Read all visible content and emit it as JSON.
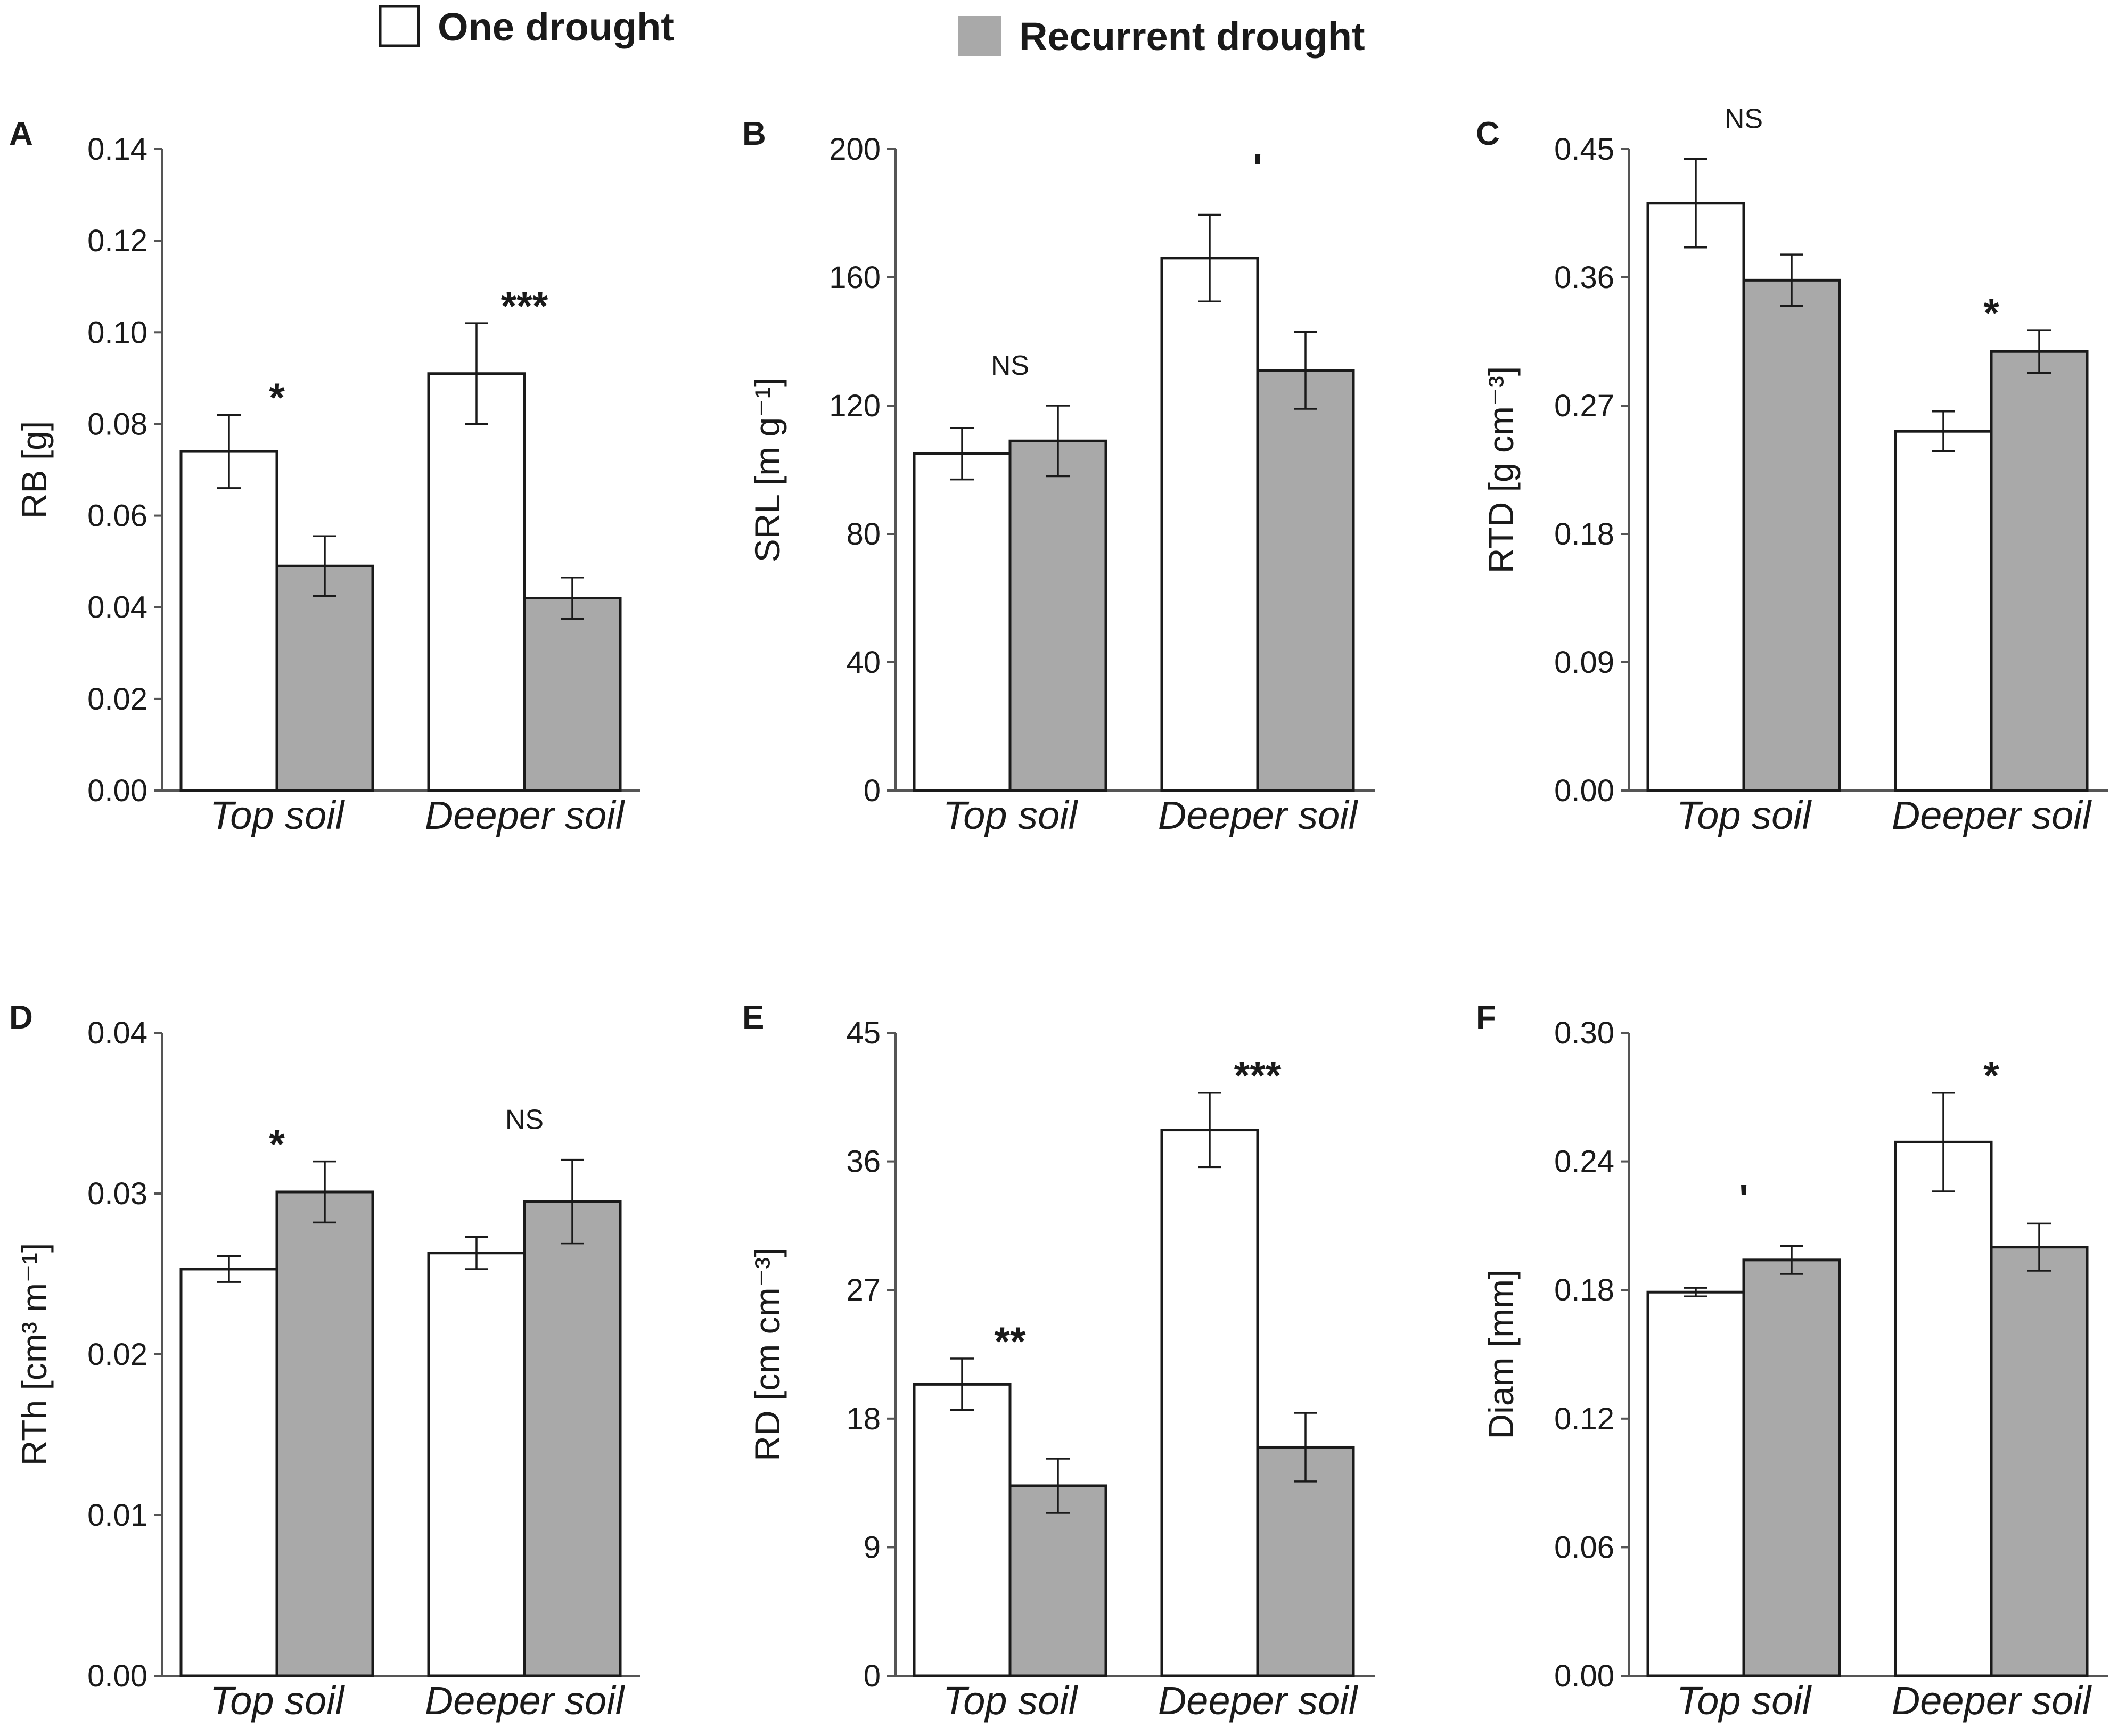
{
  "legend": {
    "one_label": "One drought",
    "recurrent_label": "Recurrent drought"
  },
  "colors": {
    "one": "#ffffff",
    "recurrent": "#a9a9a9",
    "stroke": "#1a1a1a"
  },
  "chart_data": [
    {
      "panel": "A",
      "type": "bar",
      "ylabel": "RB [g]",
      "categories": [
        "Top soil",
        "Deeper soil"
      ],
      "ylim": [
        0,
        0.14
      ],
      "ticks": [
        "0.00",
        "0.02",
        "0.04",
        "0.06",
        "0.08",
        "0.10",
        "0.12",
        "0.14"
      ],
      "series": [
        {
          "name": "One drought",
          "values": [
            0.074,
            0.091
          ],
          "errors": [
            0.008,
            0.011
          ]
        },
        {
          "name": "Recurrent drought",
          "values": [
            0.049,
            0.042
          ],
          "errors": [
            0.0065,
            0.0045
          ]
        }
      ],
      "significance": [
        "*",
        "***"
      ]
    },
    {
      "panel": "B",
      "type": "bar",
      "ylabel": "SRL [m g⁻¹]",
      "categories": [
        "Top soil",
        "Deeper soil"
      ],
      "ylim": [
        0,
        200
      ],
      "ticks": [
        "0",
        "40",
        "80",
        "120",
        "160",
        "200"
      ],
      "series": [
        {
          "name": "One drought",
          "values": [
            105,
            166
          ],
          "errors": [
            8,
            13.5
          ]
        },
        {
          "name": "Recurrent drought",
          "values": [
            109,
            131
          ],
          "errors": [
            11,
            12
          ]
        }
      ],
      "significance": [
        "NS",
        "'"
      ]
    },
    {
      "panel": "C",
      "type": "bar",
      "ylabel": "RTD [g cm⁻³]",
      "categories": [
        "Top soil",
        "Deeper soil"
      ],
      "ylim": [
        0,
        0.45
      ],
      "ticks": [
        "0.00",
        "0.09",
        "0.18",
        "0.27",
        "0.36",
        "0.45"
      ],
      "series": [
        {
          "name": "One drought",
          "values": [
            0.412,
            0.252
          ],
          "errors": [
            0.031,
            0.014
          ]
        },
        {
          "name": "Recurrent drought",
          "values": [
            0.358,
            0.308
          ],
          "errors": [
            0.018,
            0.015
          ]
        }
      ],
      "significance": [
        "NS",
        "*"
      ]
    },
    {
      "panel": "D",
      "type": "bar",
      "ylabel": "RTh [cm³ m⁻¹]",
      "categories": [
        "Top soil",
        "Deeper soil"
      ],
      "ylim": [
        0,
        0.04
      ],
      "ticks": [
        "0.00",
        "0.01",
        "0.02",
        "0.03",
        "0.04"
      ],
      "series": [
        {
          "name": "One drought",
          "values": [
            0.0253,
            0.0263
          ],
          "errors": [
            0.0008,
            0.001
          ]
        },
        {
          "name": "Recurrent drought",
          "values": [
            0.0301,
            0.0295
          ],
          "errors": [
            0.0019,
            0.0026
          ]
        }
      ],
      "significance": [
        "*",
        "NS"
      ]
    },
    {
      "panel": "E",
      "type": "bar",
      "ylabel": "RD [cm cm⁻³]",
      "categories": [
        "Top soil",
        "Deeper soil"
      ],
      "ylim": [
        0,
        45
      ],
      "ticks": [
        "0",
        "9",
        "18",
        "27",
        "36",
        "45"
      ],
      "series": [
        {
          "name": "One drought",
          "values": [
            20.4,
            38.2
          ],
          "errors": [
            1.8,
            2.6
          ]
        },
        {
          "name": "Recurrent drought",
          "values": [
            13.3,
            16
          ],
          "errors": [
            1.9,
            2.4
          ]
        }
      ],
      "significance": [
        "**",
        "***"
      ]
    },
    {
      "panel": "F",
      "type": "bar",
      "ylabel": "Diam [mm]",
      "categories": [
        "Top soil",
        "Deeper soil"
      ],
      "ylim": [
        0,
        0.3
      ],
      "ticks": [
        "0.00",
        "0.06",
        "0.12",
        "0.18",
        "0.24",
        "0.30"
      ],
      "series": [
        {
          "name": "One drought",
          "values": [
            0.179,
            0.249
          ],
          "errors": [
            0.002,
            0.023
          ]
        },
        {
          "name": "Recurrent drought",
          "values": [
            0.194,
            0.2
          ],
          "errors": [
            0.0065,
            0.011
          ]
        }
      ],
      "significance": [
        "'",
        "*"
      ]
    }
  ]
}
